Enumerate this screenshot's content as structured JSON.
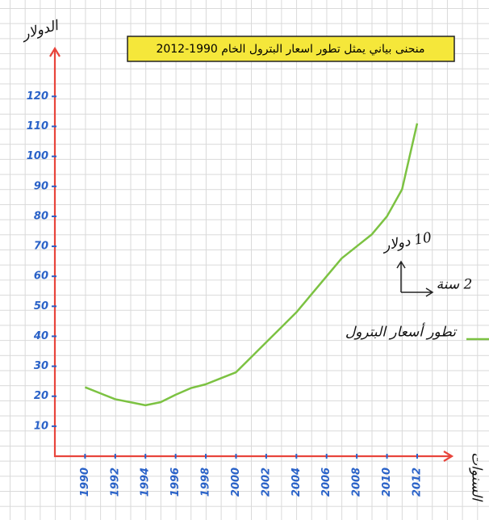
{
  "chart_data": {
    "type": "line",
    "title": "منحنى بياني يمثل تطور اسعار البترول الخام 1990-2012",
    "y_label": "الدولار",
    "x_label": "السنوات",
    "annotations": [
      "10 دولار",
      "2 سنة"
    ],
    "x": [
      1990,
      1991,
      1992,
      1993,
      1994,
      1995,
      1996,
      1997,
      1998,
      1999,
      2000,
      2001,
      2002,
      2003,
      2004,
      2005,
      2006,
      2007,
      2008,
      2009,
      2010,
      2011,
      2012
    ],
    "series": [
      {
        "name": "تطور أسعار البترول",
        "color": "#7cc242",
        "values": [
          23,
          21,
          19,
          18,
          17,
          18,
          20.5,
          22.7,
          24,
          26,
          28,
          33,
          38,
          43,
          48,
          54,
          60,
          66,
          70,
          74,
          80,
          89,
          111
        ]
      }
    ],
    "xlim": [
      1988,
      2014.3
    ],
    "xticks": [
      1990,
      1992,
      1994,
      1996,
      1998,
      2000,
      2002,
      2004,
      2006,
      2008,
      2010,
      2012
    ],
    "ylim": [
      0,
      136
    ],
    "yticks": [
      10,
      20,
      30,
      40,
      50,
      60,
      70,
      80,
      90,
      100,
      110,
      120
    ],
    "tick_color": "#2a62c8",
    "axis_color": "#e8453c"
  }
}
